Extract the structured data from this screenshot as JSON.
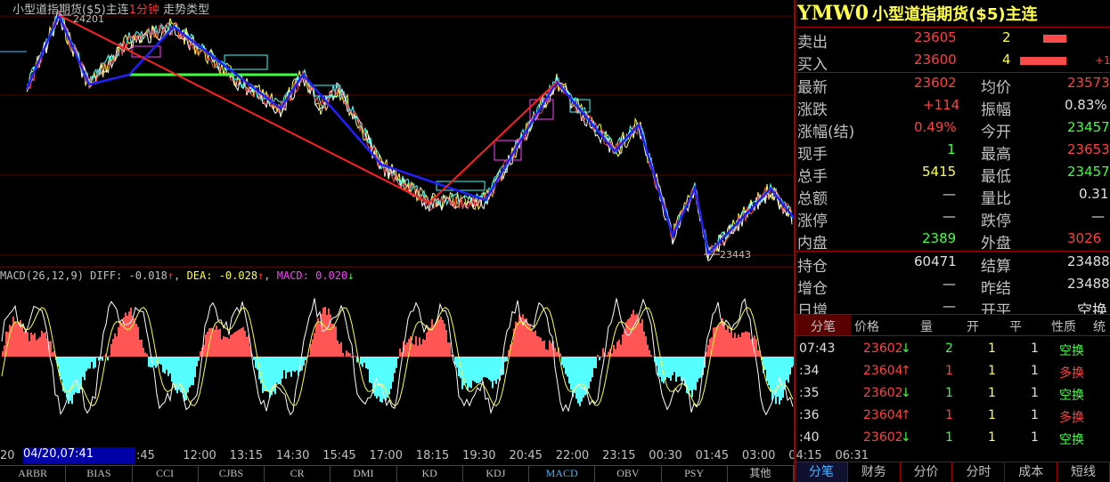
{
  "chart": {
    "title_prefix": "小型道指期货($5)主连",
    "period": "1分钟",
    "chart_type": "走势类型",
    "high_label": "24201",
    "low_label": "23443",
    "y_top": 24201,
    "y_bottom": 23443
  },
  "macd": {
    "label": "MACD(26,12,9)",
    "diff_label": "DIFF:",
    "diff": "-0.018",
    "diff_arrow": "↑",
    "dea_label": "DEA:",
    "dea": "-0.028",
    "dea_arrow": "↑",
    "macd_label": "MACD:",
    "macd": "0.020",
    "macd_arrow": "↓"
  },
  "time_axis": {
    "lead": "20",
    "selected": "04/20,07:41",
    "ticks": [
      ":45",
      "12:00",
      "13:15",
      "14:30",
      "15:45",
      "17:00",
      "18:15",
      "19:30",
      "20:45",
      "22:00",
      "23:15",
      "00:30",
      "01:45",
      "03:00",
      "04:15",
      "06:31"
    ]
  },
  "indicator_tabs": [
    "ARBR",
    "BIAS",
    "CCI",
    "CJBS",
    "CR",
    "DMI",
    "KD",
    "KDJ",
    "MACD",
    "OBV",
    "PSY",
    "其他"
  ],
  "active_indicator": "MACD",
  "quote": {
    "code": "YMW0",
    "name": "小型道指期货($5)主连",
    "sell_label": "卖出",
    "sell_price": "23605",
    "sell_vol": "2",
    "buy_label": "买入",
    "buy_price": "23600",
    "buy_vol": "4",
    "buy_change": "+1",
    "last_label": "最新",
    "last": "23602",
    "avg_label": "均价",
    "avg": "23573",
    "chg_label": "涨跌",
    "chg": "+114",
    "amp_label": "振幅",
    "amp": "0.83%",
    "pct_label": "涨幅(结)",
    "pct": "0.49%",
    "open_label": "今开",
    "open": "23457",
    "cur_vol_label": "现手",
    "cur_vol": "1",
    "high_label": "最高",
    "high": "23653",
    "total_vol_label": "总手",
    "total_vol": "5415",
    "low_label": "最低",
    "low": "23457",
    "amount_label": "总额",
    "amount": "—",
    "vol_ratio_label": "量比",
    "vol_ratio": "0.31",
    "limit_up_label": "涨停",
    "limit_up": "—",
    "limit_down_label": "跌停",
    "limit_down": "—",
    "inner_label": "内盘",
    "inner": "2389",
    "outer_label": "外盘",
    "outer": "3026",
    "oi_label": "持仓",
    "oi": "60471",
    "settle_label": "结算",
    "settle": "23488",
    "oi_chg_label": "增仓",
    "oi_chg": "—",
    "prev_settle_label": "昨结",
    "prev_settle": "23488",
    "daily_chg_label": "日增",
    "daily_chg": "—",
    "oc_label": "开平",
    "oc": "空换"
  },
  "ticks_header": {
    "c0": "分笔",
    "c1": "价格",
    "c2": "量",
    "c3": "开",
    "c4": "平",
    "c5": "性质",
    "c6": "统"
  },
  "ticks": [
    {
      "time": "07:43",
      "price": "23602",
      "dir": "↓",
      "vol": "2",
      "open": "1",
      "close": "1",
      "nature": "空换"
    },
    {
      "time": ":34",
      "price": "23604",
      "dir": "↑",
      "vol": "1",
      "open": "1",
      "close": "1",
      "nature": "多换"
    },
    {
      "time": ":35",
      "price": "23602",
      "dir": "↓",
      "vol": "1",
      "open": "1",
      "close": "1",
      "nature": "空换"
    },
    {
      "time": ":36",
      "price": "23604",
      "dir": "↑",
      "vol": "1",
      "open": "1",
      "close": "1",
      "nature": "多换"
    },
    {
      "time": ":40",
      "price": "23602",
      "dir": "↓",
      "vol": "1",
      "open": "1",
      "close": "1",
      "nature": "空换"
    }
  ],
  "panel_tabs": [
    "分笔",
    "财务",
    "分价",
    "分时",
    "成本",
    "短线"
  ],
  "active_panel_tab": "分笔",
  "colors": {
    "up": "#ff4040",
    "down": "#40ff40",
    "accent": "#ffff4a",
    "macd_pos": "#ff5555",
    "macd_neg": "#55ffff"
  }
}
